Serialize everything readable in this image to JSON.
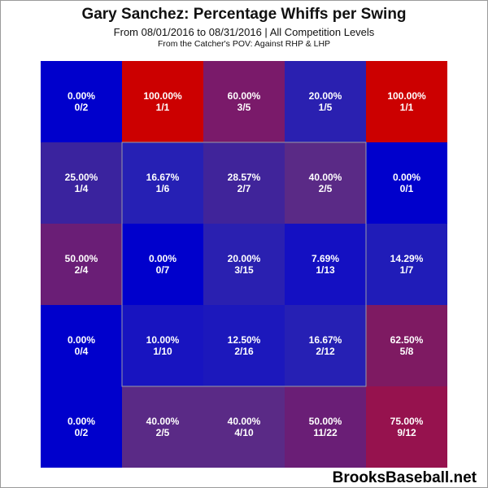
{
  "chart_data": {
    "type": "heatmap",
    "title": "Gary Sanchez: Percentage Whiffs per Swing",
    "subtitle": "From 08/01/2016 to 08/31/2016 | All Competition Levels",
    "note": "From the Catcher's POV:   Against RHP & LHP",
    "rows": 5,
    "cols": 5,
    "strike_zone": {
      "rows": [
        1,
        3
      ],
      "cols": [
        1,
        3
      ]
    },
    "cells": [
      [
        {
          "pct": "0.00%",
          "frac": "0/2",
          "value": 0.0,
          "color": "#0000cc"
        },
        {
          "pct": "100.00%",
          "frac": "1/1",
          "value": 100.0,
          "color": "#cc0000"
        },
        {
          "pct": "60.00%",
          "frac": "3/5",
          "value": 60.0,
          "color": "#7a1a6a"
        },
        {
          "pct": "20.00%",
          "frac": "1/5",
          "value": 20.0,
          "color": "#2a20b0"
        },
        {
          "pct": "100.00%",
          "frac": "1/1",
          "value": 100.0,
          "color": "#cc0000"
        }
      ],
      [
        {
          "pct": "25.00%",
          "frac": "1/4",
          "value": 25.0,
          "color": "#3a239e"
        },
        {
          "pct": "16.67%",
          "frac": "1/6",
          "value": 16.67,
          "color": "#2620b4"
        },
        {
          "pct": "28.57%",
          "frac": "2/7",
          "value": 28.57,
          "color": "#40249a"
        },
        {
          "pct": "40.00%",
          "frac": "2/5",
          "value": 40.0,
          "color": "#5a2a86"
        },
        {
          "pct": "0.00%",
          "frac": "0/1",
          "value": 0.0,
          "color": "#0000cc"
        }
      ],
      [
        {
          "pct": "50.00%",
          "frac": "2/4",
          "value": 50.0,
          "color": "#6a1e76"
        },
        {
          "pct": "0.00%",
          "frac": "0/7",
          "value": 0.0,
          "color": "#0000cc"
        },
        {
          "pct": "20.00%",
          "frac": "3/15",
          "value": 20.0,
          "color": "#2a20b0"
        },
        {
          "pct": "7.69%",
          "frac": "1/13",
          "value": 7.69,
          "color": "#1410c2"
        },
        {
          "pct": "14.29%",
          "frac": "1/7",
          "value": 14.29,
          "color": "#201cb8"
        }
      ],
      [
        {
          "pct": "0.00%",
          "frac": "0/4",
          "value": 0.0,
          "color": "#0000cc"
        },
        {
          "pct": "10.00%",
          "frac": "1/10",
          "value": 10.0,
          "color": "#1814c0"
        },
        {
          "pct": "12.50%",
          "frac": "2/16",
          "value": 12.5,
          "color": "#1c18bc"
        },
        {
          "pct": "16.67%",
          "frac": "2/12",
          "value": 16.67,
          "color": "#2620b4"
        },
        {
          "pct": "62.50%",
          "frac": "5/8",
          "value": 62.5,
          "color": "#7e1a62"
        }
      ],
      [
        {
          "pct": "0.00%",
          "frac": "0/2",
          "value": 0.0,
          "color": "#0000cc"
        },
        {
          "pct": "40.00%",
          "frac": "2/5",
          "value": 40.0,
          "color": "#5a2a86"
        },
        {
          "pct": "40.00%",
          "frac": "4/10",
          "value": 40.0,
          "color": "#5a2a86"
        },
        {
          "pct": "50.00%",
          "frac": "11/22",
          "value": 50.0,
          "color": "#6a1e76"
        },
        {
          "pct": "75.00%",
          "frac": "9/12",
          "value": 75.0,
          "color": "#96124e"
        }
      ]
    ]
  },
  "watermark": "BrooksBaseball.net"
}
